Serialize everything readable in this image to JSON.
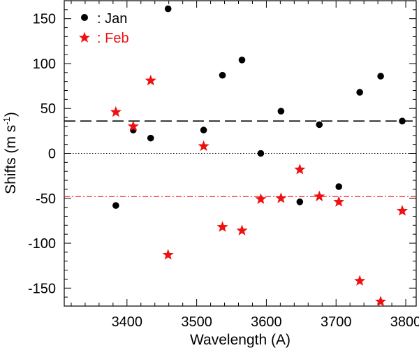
{
  "chart_data": {
    "type": "scatter",
    "xlabel": "Wavelength (A)",
    "ylabel": "Shifts (m s",
    "ylabel_sup": "-1",
    "ylabel_close": ")",
    "xlim": [
      3310,
      3815
    ],
    "ylim": [
      -170,
      170
    ],
    "xticks": [
      3400,
      3500,
      3600,
      3700,
      3800
    ],
    "yticks": [
      -150,
      -100,
      -50,
      0,
      50,
      100,
      150
    ],
    "grid": false,
    "legend_position": "top-left",
    "series": [
      {
        "name": ": Jan",
        "marker": "circle",
        "color": "#000000",
        "x": [
          3384,
          3409,
          3434,
          3459,
          3510,
          3537,
          3565,
          3592,
          3621,
          3648,
          3676,
          3704,
          3734,
          3764,
          3795
        ],
        "y": [
          -58,
          26,
          17,
          161,
          26,
          87,
          104,
          0,
          47,
          -54,
          32,
          -37,
          68,
          86,
          36
        ]
      },
      {
        "name": ": Feb",
        "marker": "star",
        "color": "#ee1111",
        "x": [
          3384,
          3409,
          3434,
          3459,
          3510,
          3537,
          3565,
          3592,
          3621,
          3648,
          3676,
          3704,
          3734,
          3764,
          3795
        ],
        "y": [
          46,
          30,
          81,
          -113,
          8,
          -82,
          -86,
          -51,
          -50,
          -18,
          -48,
          -54,
          -142,
          -165,
          -64
        ]
      }
    ],
    "reference_lines": [
      {
        "y": 36,
        "style": "dashed",
        "color": "#000000"
      },
      {
        "y": 0,
        "style": "dotted",
        "color": "#000000"
      },
      {
        "y": -48,
        "style": "dashdot",
        "color": "#ee1111"
      }
    ]
  }
}
